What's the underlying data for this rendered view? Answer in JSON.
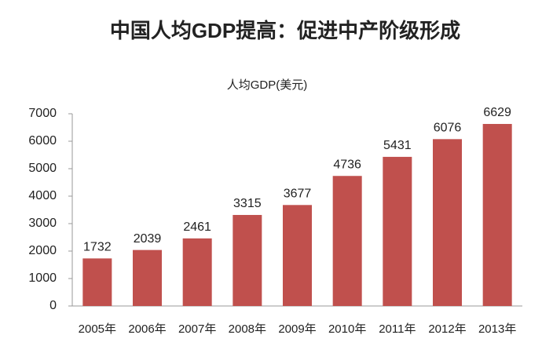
{
  "chart_data": {
    "type": "bar",
    "title": "中国人均GDP提高：促进中产阶级形成",
    "subtitle": "人均GDP(美元)",
    "categories": [
      "2005年",
      "2006年",
      "2007年",
      "2008年",
      "2009年",
      "2010年",
      "2011年",
      "2012年",
      "2013年"
    ],
    "values": [
      1732,
      2039,
      2461,
      3315,
      3677,
      4736,
      5431,
      6076,
      6629
    ],
    "color": "#c0504d",
    "ylim": [
      0,
      7000
    ],
    "yticks": [
      0,
      1000,
      2000,
      3000,
      4000,
      5000,
      6000,
      7000
    ],
    "grid": false
  }
}
